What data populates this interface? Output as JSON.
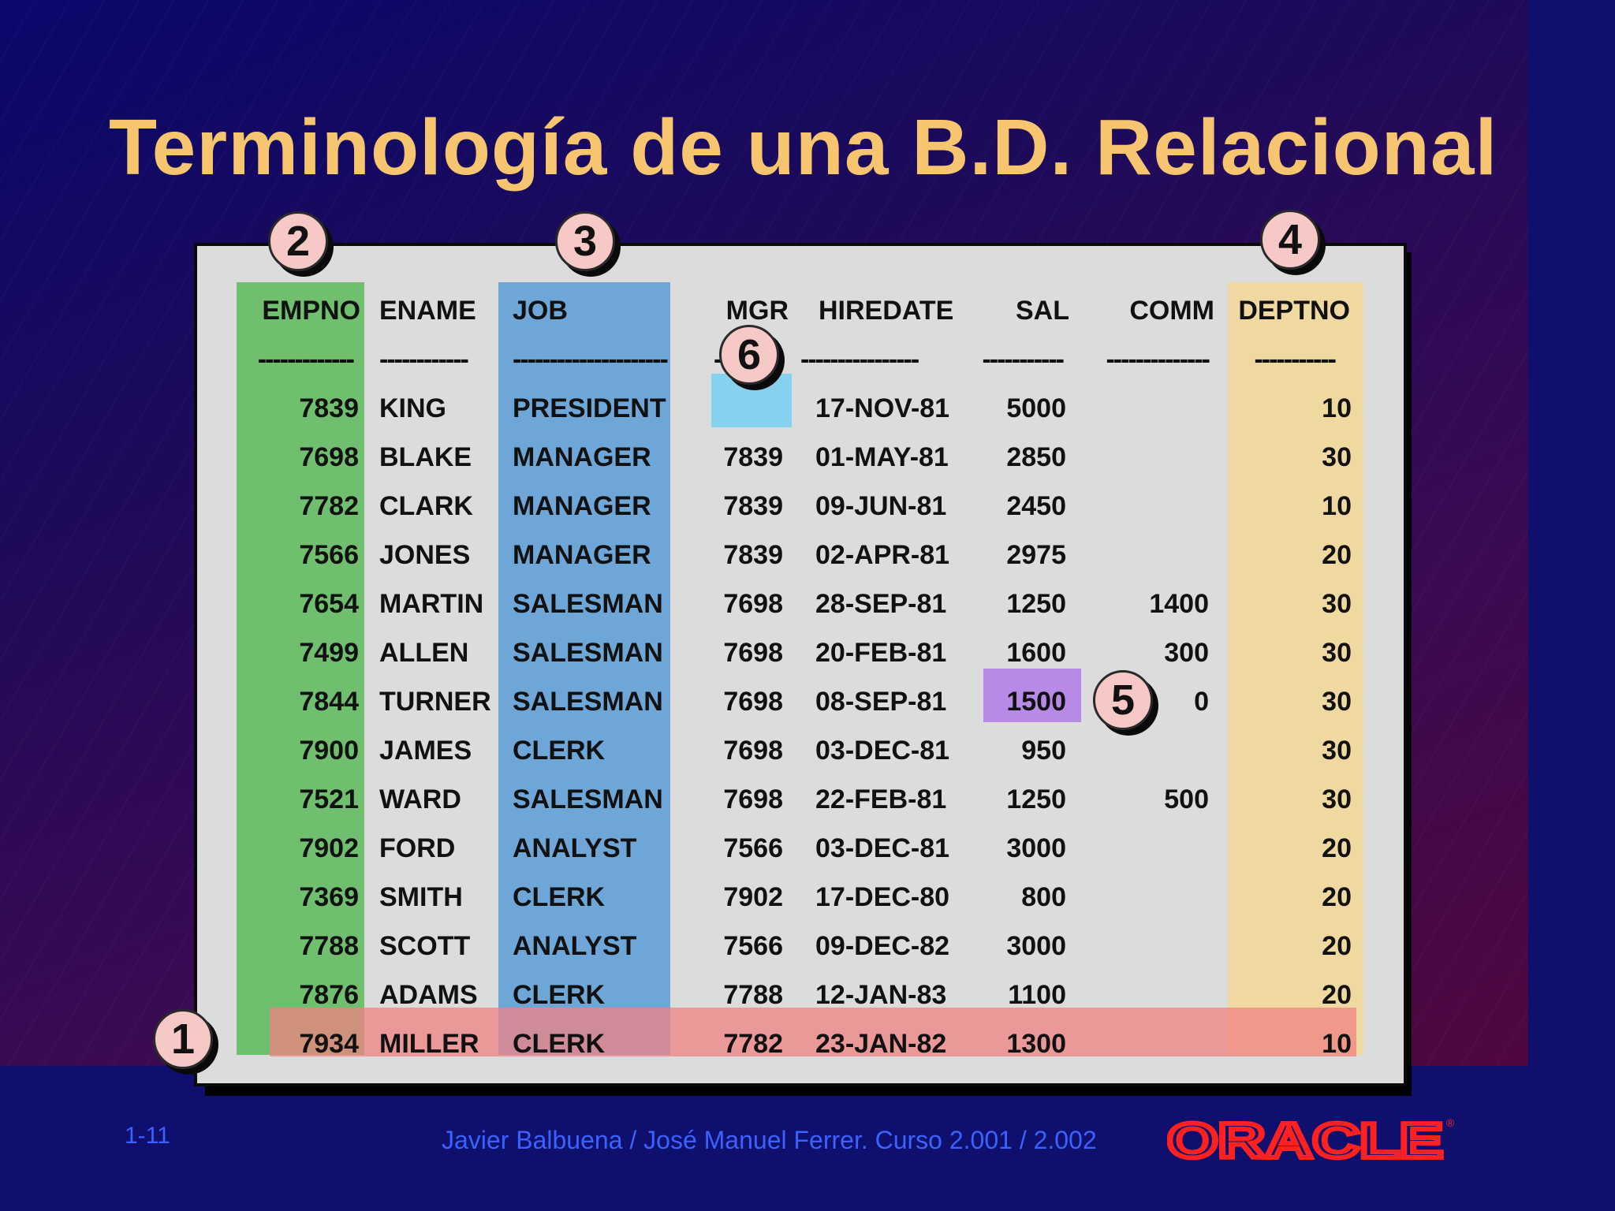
{
  "title": "Terminología de una B.D. Relacional",
  "table": {
    "headers": [
      {
        "key": "empno",
        "label": "EMPNO",
        "dash": "-------------"
      },
      {
        "key": "ename",
        "label": "ENAME",
        "dash": "------------"
      },
      {
        "key": "job",
        "label": "JOB",
        "dash": "---------------------"
      },
      {
        "key": "mgr",
        "label": "MGR",
        "dash": "---------"
      },
      {
        "key": "hiredate",
        "label": "HIREDATE",
        "dash": "----------------"
      },
      {
        "key": "sal",
        "label": "SAL",
        "dash": "-----------"
      },
      {
        "key": "comm",
        "label": "COMM",
        "dash": "--------------"
      },
      {
        "key": "deptno",
        "label": "DEPTNO",
        "dash": "-----------"
      }
    ],
    "rows": [
      [
        "7839",
        "KING",
        "PRESIDENT",
        "",
        "17-NOV-81",
        "5000",
        "",
        "10"
      ],
      [
        "7698",
        "BLAKE",
        "MANAGER",
        "7839",
        "01-MAY-81",
        "2850",
        "",
        "30"
      ],
      [
        "7782",
        "CLARK",
        "MANAGER",
        "7839",
        "09-JUN-81",
        "2450",
        "",
        "10"
      ],
      [
        "7566",
        "JONES",
        "MANAGER",
        "7839",
        "02-APR-81",
        "2975",
        "",
        "20"
      ],
      [
        "7654",
        "MARTIN",
        "SALESMAN",
        "7698",
        "28-SEP-81",
        "1250",
        "1400",
        "30"
      ],
      [
        "7499",
        "ALLEN",
        "SALESMAN",
        "7698",
        "20-FEB-81",
        "1600",
        "300",
        "30"
      ],
      [
        "7844",
        "TURNER",
        "SALESMAN",
        "7698",
        "08-SEP-81",
        "1500",
        "0",
        "30"
      ],
      [
        "7900",
        "JAMES",
        "CLERK",
        "7698",
        "03-DEC-81",
        "950",
        "",
        "30"
      ],
      [
        "7521",
        "WARD",
        "SALESMAN",
        "7698",
        "22-FEB-81",
        "1250",
        "500",
        "30"
      ],
      [
        "7902",
        "FORD",
        "ANALYST",
        "7566",
        "03-DEC-81",
        "3000",
        "",
        "20"
      ],
      [
        "7369",
        "SMITH",
        "CLERK",
        "7902",
        "17-DEC-80",
        "800",
        "",
        "20"
      ],
      [
        "7788",
        "SCOTT",
        "ANALYST",
        "7566",
        "09-DEC-82",
        "3000",
        "",
        "20"
      ],
      [
        "7876",
        "ADAMS",
        "CLERK",
        "7788",
        "12-JAN-83",
        "1100",
        "",
        "20"
      ],
      [
        "7934",
        "MILLER",
        "CLERK",
        "7782",
        "23-JAN-82",
        "1300",
        "",
        "10"
      ]
    ]
  },
  "markers": [
    "1",
    "2",
    "3",
    "4",
    "5",
    "6"
  ],
  "footer": {
    "slide_number": "1-11",
    "credit": "Javier Balbuena / José Manuel Ferrer. Curso 2.001 / 2.002",
    "logo": "ORACLE",
    "logo_mark": "®"
  },
  "colors": {
    "title": "#f7c56f",
    "empno_band": "#70bf6e",
    "job_band": "#6ea6d8",
    "deptno_band": "#f0d9a0",
    "row_highlight": "#f08282",
    "mgr_null_cell": "#86d1ee",
    "sal_cell": "#b88ae8",
    "logo": "#ff2020"
  }
}
